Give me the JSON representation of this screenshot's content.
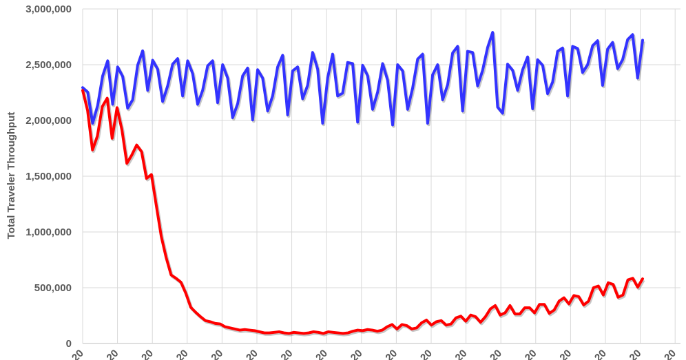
{
  "chart_data": {
    "type": "line",
    "title": "",
    "xlabel": "",
    "ylabel": "Total Traveler Throughput",
    "ylim": [
      0,
      3000000
    ],
    "y_ticks": [
      "0",
      "500,000",
      "1,000,000",
      "1,500,000",
      "2,000,000",
      "2,500,000",
      "3,000,000"
    ],
    "x_ticks": [
      "20",
      "20",
      "20",
      "20",
      "20",
      "20",
      "20",
      "20",
      "20",
      "20",
      "20",
      "20",
      "20",
      "20",
      "20",
      "20",
      "20",
      "20"
    ],
    "grid": true,
    "series": [
      {
        "name": "",
        "color": "#3333ff",
        "values": [
          2295000,
          2255000,
          1975000,
          2135000,
          2400000,
          2535000,
          2145000,
          2480000,
          2395000,
          2110000,
          2185000,
          2495000,
          2625000,
          2270000,
          2540000,
          2460000,
          2170000,
          2310000,
          2505000,
          2555000,
          2220000,
          2535000,
          2420000,
          2145000,
          2270000,
          2490000,
          2535000,
          2160000,
          2500000,
          2380000,
          2025000,
          2150000,
          2400000,
          2470000,
          2005000,
          2455000,
          2380000,
          2085000,
          2220000,
          2480000,
          2585000,
          2050000,
          2445000,
          2480000,
          2195000,
          2315000,
          2610000,
          2460000,
          1975000,
          2380000,
          2595000,
          2220000,
          2245000,
          2520000,
          2510000,
          1985000,
          2495000,
          2400000,
          2100000,
          2255000,
          2510000,
          2360000,
          1960000,
          2500000,
          2445000,
          2100000,
          2290000,
          2550000,
          2595000,
          1975000,
          2410000,
          2500000,
          2185000,
          2320000,
          2605000,
          2665000,
          2085000,
          2620000,
          2610000,
          2310000,
          2450000,
          2655000,
          2790000,
          2120000,
          2065000,
          2505000,
          2450000,
          2270000,
          2455000,
          2570000,
          2105000,
          2545000,
          2495000,
          2240000,
          2345000,
          2620000,
          2650000,
          2220000,
          2665000,
          2645000,
          2430000,
          2500000,
          2670000,
          2715000,
          2315000,
          2640000,
          2700000,
          2465000,
          2545000,
          2725000,
          2770000,
          2380000,
          2720000
        ]
      },
      {
        "name": "",
        "color": "#ff0000",
        "values": [
          2270000,
          2090000,
          1735000,
          1860000,
          2125000,
          2200000,
          1840000,
          2115000,
          1915000,
          1615000,
          1690000,
          1780000,
          1720000,
          1480000,
          1515000,
          1235000,
          960000,
          770000,
          615000,
          585000,
          550000,
          450000,
          325000,
          280000,
          240000,
          205000,
          195000,
          180000,
          175000,
          150000,
          140000,
          130000,
          120000,
          125000,
          120000,
          115000,
          105000,
          95000,
          95000,
          100000,
          105000,
          95000,
          90000,
          100000,
          95000,
          90000,
          95000,
          105000,
          100000,
          90000,
          105000,
          100000,
          95000,
          90000,
          95000,
          110000,
          120000,
          115000,
          125000,
          120000,
          110000,
          120000,
          150000,
          170000,
          130000,
          170000,
          160000,
          130000,
          140000,
          185000,
          210000,
          165000,
          195000,
          205000,
          165000,
          175000,
          230000,
          245000,
          200000,
          255000,
          240000,
          190000,
          240000,
          310000,
          340000,
          255000,
          275000,
          340000,
          265000,
          265000,
          320000,
          320000,
          275000,
          350000,
          350000,
          270000,
          300000,
          380000,
          410000,
          355000,
          430000,
          420000,
          345000,
          380000,
          500000,
          515000,
          435000,
          545000,
          530000,
          415000,
          435000,
          570000,
          585000,
          505000,
          580000
        ]
      }
    ]
  }
}
